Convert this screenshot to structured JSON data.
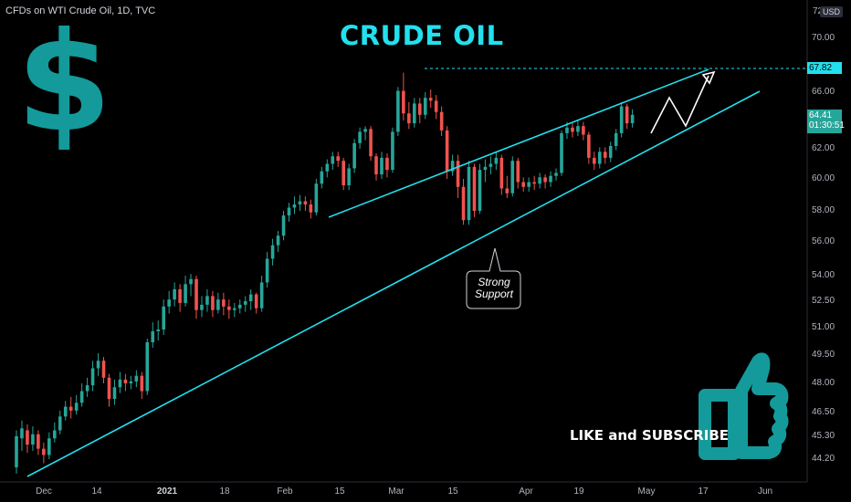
{
  "header": {
    "symbol_line": "CFDs on WTI Crude Oil, 1D, TVC"
  },
  "overlay": {
    "title": "CRUDE OIL",
    "dollar_sign": "$",
    "cta": "LIKE and SUBSCRIBE",
    "callout": [
      "Strong",
      "Support"
    ],
    "thumb_icon": "thumbs-up-icon"
  },
  "price_axis": {
    "currency": "USD",
    "top_label": "72",
    "target_label": "67.82",
    "last_price": "64.41",
    "countdown": "01:30:51"
  },
  "colors": {
    "up": "#26a69a",
    "down": "#ef5350",
    "accent": "#22e0ee",
    "icon": "#149a9a"
  },
  "chart_data": {
    "type": "candlestick",
    "title": "",
    "yticks": [
      "70.00",
      "66.00",
      "62.00",
      "60.00",
      "58.00",
      "56.00",
      "54.00",
      "52.50",
      "51.00",
      "49.50",
      "48.00",
      "46.50",
      "45.30",
      "44.20"
    ],
    "xticks": [
      {
        "label": "Dec",
        "bold": false
      },
      {
        "label": "14",
        "bold": false
      },
      {
        "label": "2021",
        "bold": true
      },
      {
        "label": "18",
        "bold": false
      },
      {
        "label": "Feb",
        "bold": false
      },
      {
        "label": "15",
        "bold": false
      },
      {
        "label": "Mar",
        "bold": false
      },
      {
        "label": "15",
        "bold": false
      },
      {
        "label": "Apr",
        "bold": false
      },
      {
        "label": "19",
        "bold": false
      },
      {
        "label": "May",
        "bold": false
      },
      {
        "label": "17",
        "bold": false
      },
      {
        "label": "Jun",
        "bold": false
      }
    ],
    "candles": [
      [
        43.8,
        45.3,
        43.5,
        45.6
      ],
      [
        45.2,
        45.7,
        44.6,
        46.1
      ],
      [
        45.6,
        44.9,
        44.5,
        45.9
      ],
      [
        44.9,
        45.4,
        44.6,
        45.8
      ],
      [
        45.4,
        44.7,
        44.4,
        45.6
      ],
      [
        44.7,
        44.4,
        44.0,
        45.0
      ],
      [
        44.4,
        45.2,
        44.2,
        45.5
      ],
      [
        45.2,
        45.6,
        45.0,
        46.0
      ],
      [
        45.6,
        46.3,
        45.4,
        46.6
      ],
      [
        46.3,
        46.8,
        46.1,
        47.1
      ],
      [
        46.8,
        46.6,
        46.2,
        47.3
      ],
      [
        46.6,
        47.0,
        46.4,
        47.4
      ],
      [
        47.0,
        47.6,
        46.8,
        48.0
      ],
      [
        47.6,
        47.9,
        47.3,
        48.3
      ],
      [
        47.9,
        48.8,
        47.6,
        49.2
      ],
      [
        48.8,
        49.2,
        48.4,
        49.6
      ],
      [
        49.2,
        48.3,
        48.0,
        49.4
      ],
      [
        48.3,
        47.2,
        46.8,
        48.5
      ],
      [
        47.2,
        47.8,
        46.9,
        48.2
      ],
      [
        47.8,
        48.2,
        47.5,
        48.6
      ],
      [
        48.2,
        48.0,
        47.6,
        48.5
      ],
      [
        48.0,
        48.1,
        47.7,
        48.4
      ],
      [
        48.1,
        48.4,
        47.8,
        48.7
      ],
      [
        48.4,
        47.6,
        47.2,
        48.6
      ],
      [
        47.6,
        50.2,
        47.4,
        50.4
      ],
      [
        50.2,
        50.8,
        49.9,
        51.3
      ],
      [
        50.8,
        50.9,
        50.3,
        51.4
      ],
      [
        50.9,
        52.2,
        50.6,
        52.6
      ],
      [
        52.2,
        52.6,
        51.8,
        53.1
      ],
      [
        52.6,
        53.2,
        52.2,
        53.6
      ],
      [
        53.2,
        52.4,
        51.9,
        53.5
      ],
      [
        52.4,
        53.5,
        52.2,
        54.0
      ],
      [
        53.5,
        53.8,
        52.8,
        54.1
      ],
      [
        53.8,
        52.0,
        51.5,
        54.0
      ],
      [
        52.0,
        52.3,
        51.6,
        52.8
      ],
      [
        52.3,
        52.8,
        51.9,
        53.2
      ],
      [
        52.8,
        52.0,
        51.6,
        53.1
      ],
      [
        52.0,
        52.6,
        51.8,
        53.0
      ],
      [
        52.6,
        52.2,
        51.7,
        53.0
      ],
      [
        52.2,
        52.0,
        51.5,
        52.6
      ],
      [
        52.0,
        52.1,
        51.6,
        52.4
      ],
      [
        52.1,
        52.3,
        51.8,
        52.6
      ],
      [
        52.3,
        52.5,
        51.9,
        52.8
      ],
      [
        52.5,
        52.9,
        52.0,
        53.2
      ],
      [
        52.9,
        52.1,
        51.8,
        53.0
      ],
      [
        52.1,
        53.6,
        51.9,
        54.0
      ],
      [
        53.6,
        55.0,
        53.3,
        55.4
      ],
      [
        55.0,
        55.8,
        54.6,
        56.2
      ],
      [
        55.8,
        56.4,
        55.4,
        56.7
      ],
      [
        56.4,
        57.7,
        56.1,
        58.0
      ],
      [
        57.7,
        58.2,
        57.3,
        58.5
      ],
      [
        58.2,
        58.4,
        57.8,
        58.9
      ],
      [
        58.4,
        58.6,
        58.0,
        59.0
      ],
      [
        58.6,
        58.4,
        58.0,
        58.9
      ],
      [
        58.4,
        57.9,
        57.5,
        58.7
      ],
      [
        57.9,
        59.7,
        57.7,
        60.0
      ],
      [
        59.7,
        60.5,
        59.4,
        60.8
      ],
      [
        60.5,
        61.0,
        60.1,
        61.3
      ],
      [
        61.0,
        61.5,
        60.6,
        61.8
      ],
      [
        61.5,
        61.2,
        60.8,
        61.8
      ],
      [
        61.2,
        59.6,
        59.3,
        61.4
      ],
      [
        59.6,
        60.7,
        59.3,
        61.0
      ],
      [
        60.7,
        62.4,
        60.4,
        62.7
      ],
      [
        62.4,
        63.2,
        62.0,
        63.5
      ],
      [
        63.2,
        63.4,
        62.6,
        63.6
      ],
      [
        63.4,
        61.5,
        61.2,
        63.6
      ],
      [
        61.5,
        60.3,
        59.9,
        61.7
      ],
      [
        60.3,
        61.4,
        60.0,
        61.8
      ],
      [
        61.4,
        60.6,
        60.1,
        61.7
      ],
      [
        60.6,
        63.2,
        60.4,
        63.5
      ],
      [
        63.2,
        66.1,
        62.9,
        66.4
      ],
      [
        66.1,
        64.5,
        64.0,
        67.5
      ],
      [
        64.5,
        63.8,
        63.4,
        65.3
      ],
      [
        63.8,
        65.2,
        63.5,
        65.6
      ],
      [
        65.2,
        64.4,
        63.8,
        65.6
      ],
      [
        64.4,
        65.6,
        64.1,
        66.0
      ],
      [
        65.6,
        65.4,
        64.9,
        66.2
      ],
      [
        65.4,
        64.6,
        64.1,
        65.8
      ],
      [
        64.6,
        63.3,
        62.9,
        65.0
      ],
      [
        63.3,
        60.5,
        60.0,
        63.6
      ],
      [
        60.5,
        61.2,
        60.2,
        61.6
      ],
      [
        61.2,
        59.5,
        58.8,
        61.6
      ],
      [
        59.5,
        57.4,
        57.1,
        60.0
      ],
      [
        57.4,
        60.8,
        57.1,
        61.2
      ],
      [
        60.8,
        58.0,
        57.6,
        61.0
      ],
      [
        58.0,
        60.6,
        57.8,
        61.0
      ],
      [
        60.6,
        60.8,
        59.8,
        61.3
      ],
      [
        60.8,
        61.0,
        60.3,
        61.5
      ],
      [
        61.0,
        61.4,
        60.6,
        61.8
      ],
      [
        61.4,
        59.4,
        59.0,
        61.6
      ],
      [
        59.4,
        59.1,
        58.8,
        60.2
      ],
      [
        59.1,
        61.2,
        58.9,
        61.5
      ],
      [
        61.2,
        59.8,
        59.4,
        61.4
      ],
      [
        59.8,
        59.5,
        59.2,
        60.1
      ],
      [
        59.5,
        59.8,
        59.2,
        60.1
      ],
      [
        59.8,
        59.7,
        59.3,
        60.2
      ],
      [
        59.7,
        60.1,
        59.4,
        60.4
      ],
      [
        60.1,
        59.8,
        59.4,
        60.3
      ],
      [
        59.8,
        60.2,
        59.5,
        60.5
      ],
      [
        60.2,
        60.4,
        59.9,
        60.7
      ],
      [
        60.4,
        63.1,
        60.2,
        63.3
      ],
      [
        63.1,
        63.5,
        62.7,
        63.9
      ],
      [
        63.5,
        63.2,
        62.8,
        63.8
      ],
      [
        63.2,
        63.6,
        62.9,
        64.0
      ],
      [
        63.6,
        63.0,
        62.6,
        63.9
      ],
      [
        63.0,
        61.4,
        61.0,
        63.2
      ],
      [
        61.4,
        61.0,
        60.6,
        61.8
      ],
      [
        61.0,
        61.8,
        60.7,
        62.1
      ],
      [
        61.8,
        61.4,
        61.0,
        62.1
      ],
      [
        61.4,
        62.2,
        61.1,
        62.5
      ],
      [
        62.2,
        63.1,
        61.9,
        63.4
      ],
      [
        63.1,
        65.0,
        62.8,
        65.3
      ],
      [
        65.0,
        63.8,
        63.4,
        65.2
      ],
      [
        63.8,
        64.4,
        63.5,
        64.8
      ]
    ]
  }
}
